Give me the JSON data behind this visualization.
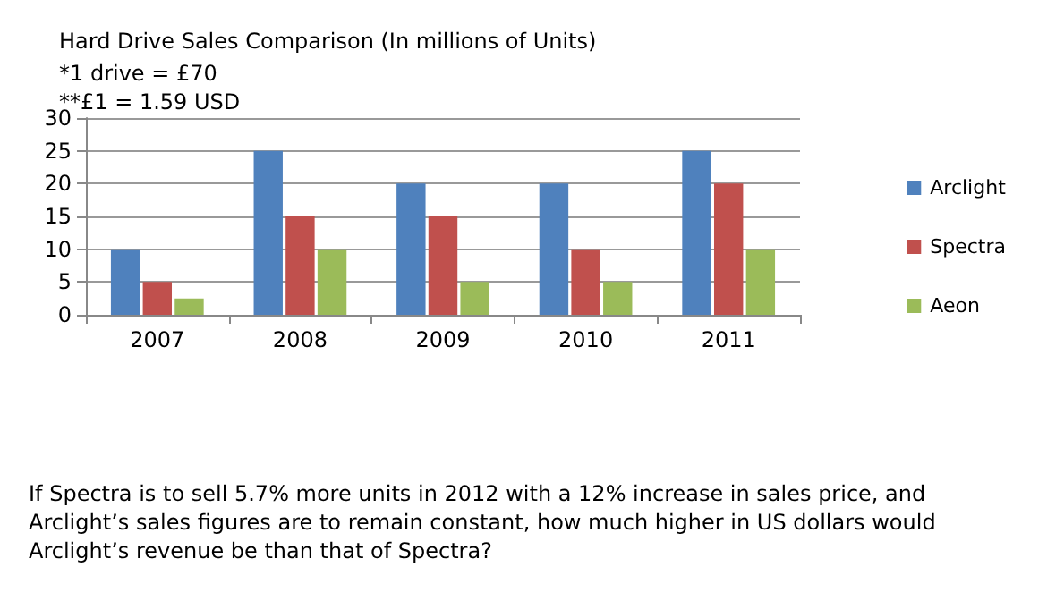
{
  "chart_data": {
    "type": "bar",
    "title": "Hard Drive Sales Comparison (In millions of Units)",
    "subtitle": "*1 drive = £70\n**£1 = 1.59 USD",
    "categories": [
      "2007",
      "2008",
      "2009",
      "2010",
      "2011"
    ],
    "series": [
      {
        "name": "Arclight",
        "color": "#4f81bd",
        "values": [
          10,
          25,
          20,
          20,
          25
        ]
      },
      {
        "name": "Spectra",
        "color": "#c0504d",
        "values": [
          5,
          15,
          15,
          10,
          20
        ]
      },
      {
        "name": "Aeon",
        "color": "#9bbb59",
        "values": [
          2.5,
          10,
          5,
          5,
          10
        ]
      }
    ],
    "ylim": [
      0,
      30
    ],
    "yticks": [
      0,
      5,
      10,
      15,
      20,
      25,
      30
    ],
    "grid": "y",
    "legend": "right",
    "annotations": [
      "If Spectra is to sell 5.7% more units in 2012 with a 12% increase in sales price, and Arclight’s sales figures are to remain constant, how much higher in US dollars would Arclight’s revenue be than that of Spectra?"
    ]
  }
}
